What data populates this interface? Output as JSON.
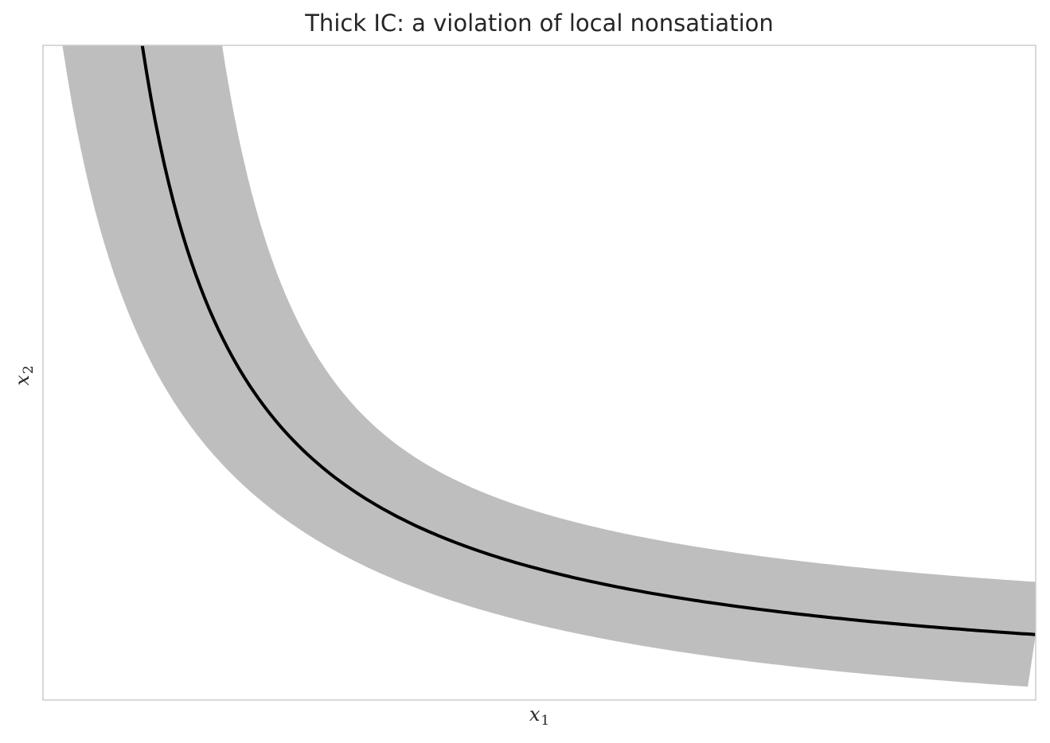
{
  "chart_data": {
    "type": "line",
    "title": "Thick IC: a violation of local nonsatiation",
    "xlabel": "x",
    "xlabel_subscript": "1",
    "ylabel": "x",
    "ylabel_subscript": "2",
    "xlim": [
      0,
      10
    ],
    "ylim": [
      0,
      10
    ],
    "grid": false,
    "ticks": false,
    "series": [
      {
        "kind": "band",
        "color": "#bebebe",
        "upper": {
          "x": [
            1.05,
            1.5,
            2.0,
            2.5,
            3.0,
            3.5,
            4.0,
            5.0,
            6.0,
            7.0,
            8.0,
            9.0,
            10.0
          ],
          "y": [
            10.0,
            8.9,
            6.6,
            5.3,
            4.45,
            3.85,
            3.4,
            2.8,
            2.4,
            2.1,
            1.9,
            1.72,
            2.4
          ]
        },
        "lower": {
          "x": [
            1.05,
            1.5,
            2.0,
            2.5,
            3.0,
            3.5,
            4.0,
            5.0,
            6.0,
            7.0,
            8.0,
            9.0,
            10.0
          ],
          "y": [
            10.0,
            7.2,
            5.0,
            3.95,
            3.3,
            2.85,
            2.5,
            2.0,
            1.7,
            1.45,
            1.25,
            1.1,
            0.8
          ]
        }
      },
      {
        "kind": "line",
        "color": "#000000",
        "k": 10,
        "x_min": 1.6,
        "x_max": 10
      }
    ],
    "band_halfwidth": 0.8
  }
}
